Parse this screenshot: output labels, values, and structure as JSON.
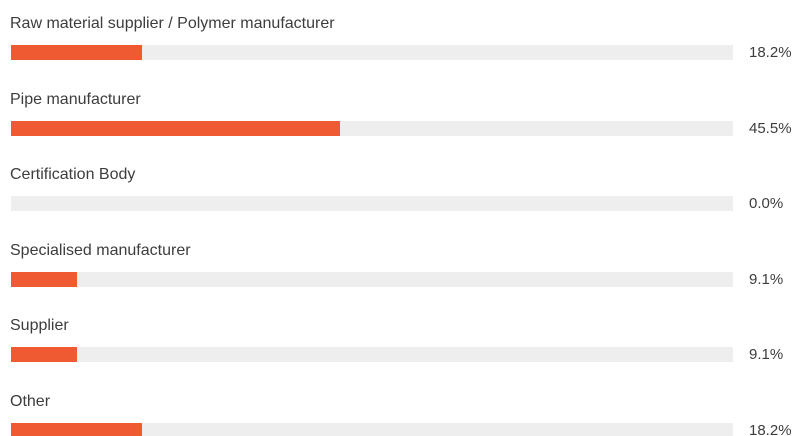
{
  "chart_data": {
    "type": "bar",
    "orientation": "horizontal",
    "bar_color": "#f05a32",
    "track_color": "#eeeeee",
    "xlim": [
      0,
      100
    ],
    "categories": [
      "Raw material supplier / Polymer manufacturer",
      "Pipe manufacturer",
      "Certification Body",
      "Specialised manufacturer",
      "Supplier",
      "Other"
    ],
    "values": [
      18.2,
      45.5,
      0.0,
      9.1,
      9.1,
      18.2
    ],
    "value_labels": [
      "18.2%",
      "45.5%",
      "0.0%",
      "9.1%",
      "9.1%",
      "18.2%"
    ]
  }
}
